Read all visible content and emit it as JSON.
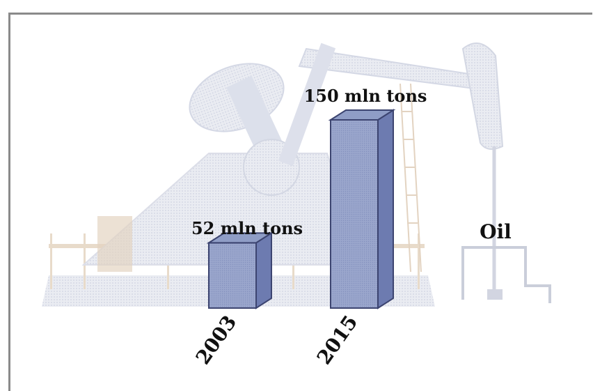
{
  "chart_data": {
    "type": "bar",
    "categories": [
      "2003",
      "2015"
    ],
    "values": [
      52,
      150
    ],
    "data_labels": [
      "52 mln tons",
      "150 mln tons"
    ],
    "annotation": "Oil",
    "bar_color": "#8f9dc6",
    "ylim": [
      0,
      160
    ]
  }
}
